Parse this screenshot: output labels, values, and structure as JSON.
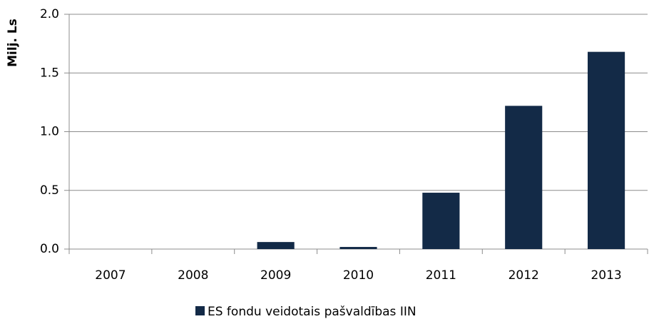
{
  "chart_data": {
    "type": "bar",
    "y_label": "Milj. Ls",
    "categories": [
      "2007",
      "2008",
      "2009",
      "2010",
      "2011",
      "2012",
      "2013"
    ],
    "series": [
      {
        "name": "ES fondu veidotais pašvaldības IIN",
        "color": "#132a47",
        "values": [
          0,
          0,
          0.06,
          0.018,
          0.48,
          1.22,
          1.68
        ]
      }
    ],
    "ylim": [
      0,
      2
    ],
    "yticks": [
      {
        "value": 0,
        "label": "0.0"
      },
      0.5,
      {
        "value": 1,
        "label": "1.0"
      },
      1.5,
      {
        "value": 2,
        "label": "2.0"
      }
    ],
    "grid": true,
    "legend": "bottom"
  }
}
